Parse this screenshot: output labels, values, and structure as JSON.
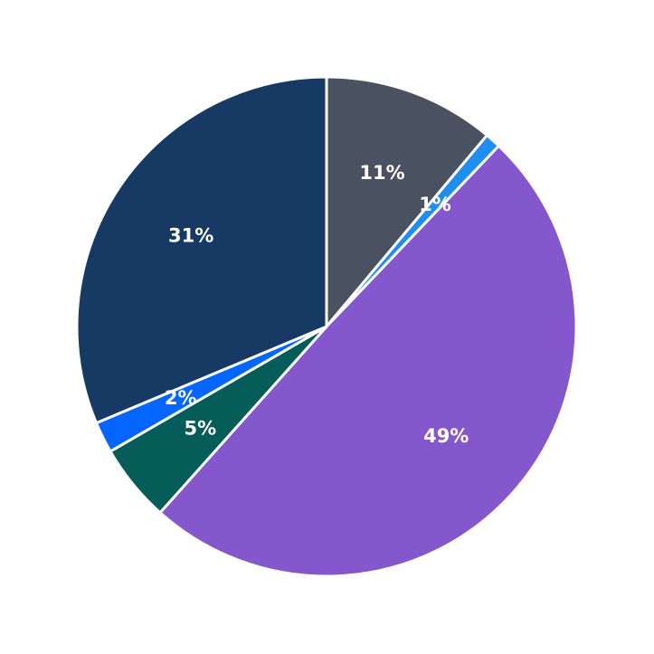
{
  "chart_data": {
    "type": "pie",
    "values": [
      11,
      1,
      49,
      5,
      2,
      31
    ],
    "value_labels": [
      "11%",
      "1%",
      "49%",
      "5%",
      "2%",
      "31%"
    ],
    "colors": [
      "#4a5261",
      "#1f8ef1",
      "#8557cc",
      "#065c58",
      "#0565ff",
      "#163a63"
    ]
  }
}
